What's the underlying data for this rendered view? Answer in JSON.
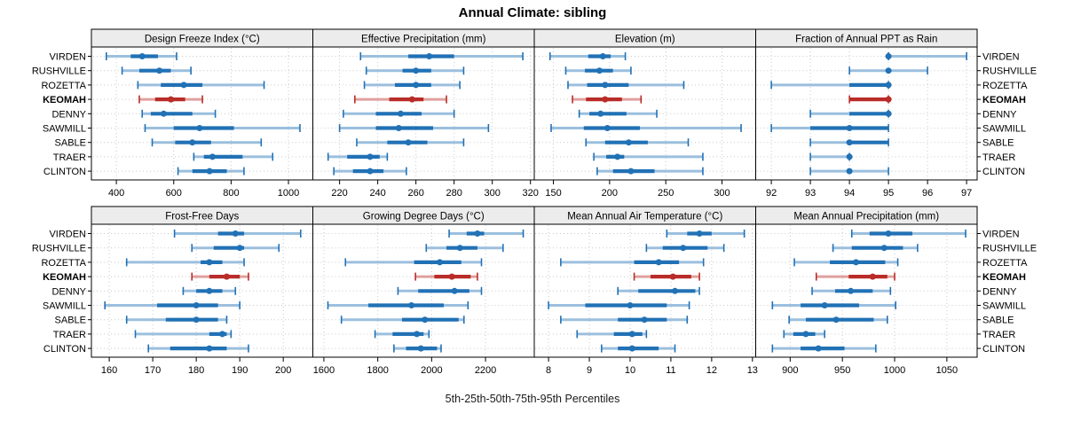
{
  "title": "Annual Climate: sibling",
  "caption": "5th-25th-50th-75th-95th Percentiles",
  "highlight_site": "KEOMAH",
  "colors": {
    "series_blue": "#2171b5",
    "series_blue_light": "#9bbfde",
    "highlight_red": "#b92c28",
    "highlight_red_light": "#e0a09e",
    "strip_bg": "#ececec",
    "panel_border": "#000000",
    "grid": "#c9c9c9",
    "text": "#000000"
  },
  "chart_data": {
    "type": "percentile-dotplot",
    "percentiles": [
      5,
      25,
      50,
      75,
      95
    ],
    "grid": "dotted",
    "legend_position": "none",
    "categories": [
      "VIRDEN",
      "RUSHVILLE",
      "ROZETTA",
      "KEOMAH",
      "DENNY",
      "SAWMILL",
      "SABLE",
      "TRAER",
      "CLINTON"
    ],
    "panels": [
      {
        "label": "Design Freeze Index (°C)",
        "ticks": [
          400,
          600,
          800,
          1000
        ],
        "xlim": [
          313,
          1085
        ],
        "values": {
          "VIRDEN": [
            365,
            450,
            490,
            545,
            610
          ],
          "RUSHVILLE": [
            420,
            480,
            550,
            590,
            660
          ],
          "ROZETTA": [
            475,
            555,
            635,
            700,
            915
          ],
          "KEOMAH": [
            480,
            535,
            590,
            640,
            700
          ],
          "DENNY": [
            490,
            520,
            565,
            665,
            745
          ],
          "SAWMILL": [
            500,
            600,
            690,
            810,
            1040
          ],
          "SABLE": [
            525,
            605,
            665,
            730,
            905
          ],
          "TRAER": [
            670,
            705,
            735,
            840,
            945
          ],
          "CLINTON": [
            615,
            665,
            725,
            785,
            845
          ]
        }
      },
      {
        "label": "Effective Precipitation (mm)",
        "ticks": [
          220,
          240,
          260,
          280,
          300,
          320
        ],
        "xlim": [
          206,
          322
        ],
        "values": {
          "VIRDEN": [
            231,
            256,
            267,
            280,
            316
          ],
          "RUSHVILLE": [
            234,
            253,
            260,
            268,
            285
          ],
          "ROZETTA": [
            233,
            249,
            260,
            268,
            283
          ],
          "KEOMAH": [
            228,
            246,
            258,
            264,
            276
          ],
          "DENNY": [
            222,
            239,
            252,
            263,
            280
          ],
          "SAWMILL": [
            220,
            239,
            251,
            269,
            298
          ],
          "SABLE": [
            229,
            245,
            256,
            266,
            285
          ],
          "TRAER": [
            214,
            224,
            236,
            241,
            245
          ],
          "CLINTON": [
            217,
            227,
            236,
            243,
            255
          ]
        }
      },
      {
        "label": "Elevation (m)",
        "ticks": [
          150,
          200,
          250,
          300
        ],
        "xlim": [
          133,
          330
        ],
        "values": {
          "VIRDEN": [
            147,
            181,
            194,
            201,
            214
          ],
          "RUSHVILLE": [
            161,
            178,
            191,
            203,
            219
          ],
          "ROZETTA": [
            163,
            180,
            196,
            217,
            266
          ],
          "KEOMAH": [
            167,
            179,
            196,
            211,
            228
          ],
          "DENNY": [
            173,
            182,
            192,
            215,
            242
          ],
          "SAWMILL": [
            148,
            177,
            198,
            227,
            317
          ],
          "SABLE": [
            179,
            196,
            217,
            234,
            270
          ],
          "TRAER": [
            186,
            197,
            207,
            213,
            283
          ],
          "CLINTON": [
            189,
            203,
            219,
            240,
            283
          ]
        }
      },
      {
        "label": "Fraction of Annual PPT as Rain",
        "ticks": [
          92,
          93,
          94,
          95,
          96,
          97
        ],
        "xlim": [
          91.6,
          97.27
        ],
        "values": {
          "VIRDEN": [
            95,
            95,
            95,
            95,
            97
          ],
          "RUSHVILLE": [
            94,
            95,
            95,
            95,
            96
          ],
          "ROZETTA": [
            92,
            94,
            95,
            95,
            95
          ],
          "KEOMAH": [
            94,
            94,
            95,
            95,
            95
          ],
          "DENNY": [
            93,
            94,
            95,
            95,
            95
          ],
          "SAWMILL": [
            92,
            93,
            94,
            95,
            95
          ],
          "SABLE": [
            93,
            94,
            94,
            95,
            95
          ],
          "TRAER": [
            93,
            94,
            94,
            94,
            94
          ],
          "CLINTON": [
            93,
            94,
            94,
            94,
            95
          ]
        }
      },
      {
        "label": "Frost-Free Days",
        "ticks": [
          160,
          170,
          180,
          190,
          200
        ],
        "xlim": [
          155.9,
          206.8
        ],
        "values": {
          "VIRDEN": [
            175,
            185,
            189,
            191,
            204
          ],
          "RUSHVILLE": [
            179,
            184,
            190,
            191,
            199
          ],
          "ROZETTA": [
            164,
            181,
            183,
            186,
            191
          ],
          "KEOMAH": [
            179,
            183,
            187,
            190,
            192
          ],
          "DENNY": [
            177,
            180,
            183,
            186,
            189
          ],
          "SAWMILL": [
            159,
            171,
            180,
            185,
            190
          ],
          "SABLE": [
            164,
            173,
            180,
            185,
            187
          ],
          "TRAER": [
            166,
            183,
            186,
            187,
            188
          ],
          "CLINTON": [
            169,
            174,
            183,
            187,
            192
          ]
        }
      },
      {
        "label": "Growing Degree Days (°C)",
        "ticks": [
          1600,
          1800,
          2000,
          2200
        ],
        "xlim": [
          1559,
          2381
        ],
        "values": {
          "VIRDEN": [
            2065,
            2130,
            2170,
            2195,
            2340
          ],
          "RUSHVILLE": [
            1980,
            2055,
            2105,
            2170,
            2265
          ],
          "ROZETTA": [
            1680,
            1935,
            2030,
            2110,
            2185
          ],
          "KEOMAH": [
            1940,
            2010,
            2075,
            2145,
            2170
          ],
          "DENNY": [
            1875,
            1950,
            2085,
            2140,
            2185
          ],
          "SAWMILL": [
            1615,
            1765,
            1925,
            2045,
            2135
          ],
          "SABLE": [
            1665,
            1890,
            1975,
            2100,
            2120
          ],
          "TRAER": [
            1790,
            1855,
            1945,
            1970,
            1990
          ],
          "CLINTON": [
            1860,
            1905,
            1960,
            2020,
            2035
          ]
        }
      },
      {
        "label": "Mean Annual Air Temperature (°C)",
        "ticks": [
          8,
          9,
          10,
          11,
          12,
          13
        ],
        "xlim": [
          7.65,
          13.08
        ],
        "values": {
          "VIRDEN": [
            10.9,
            11.4,
            11.7,
            12.0,
            12.8
          ],
          "RUSHVILLE": [
            10.4,
            10.8,
            11.3,
            11.9,
            12.3
          ],
          "ROZETTA": [
            8.3,
            10.1,
            10.7,
            11.2,
            11.8
          ],
          "KEOMAH": [
            10.1,
            10.5,
            11.05,
            11.5,
            11.7
          ],
          "DENNY": [
            9.7,
            10.2,
            11.1,
            11.6,
            11.7
          ],
          "SAWMILL": [
            8.0,
            8.9,
            10.0,
            10.9,
            11.45
          ],
          "SABLE": [
            8.3,
            9.7,
            10.35,
            10.9,
            11.4
          ],
          "TRAER": [
            8.7,
            9.6,
            10.05,
            10.3,
            10.4
          ],
          "CLINTON": [
            9.3,
            9.7,
            10.05,
            10.7,
            11.1
          ]
        }
      },
      {
        "label": "Mean Annual Precipitation (mm)",
        "ticks": [
          900,
          950,
          1000,
          1050
        ],
        "xlim": [
          867,
          1079
        ],
        "values": {
          "VIRDEN": [
            959,
            976,
            994,
            1017,
            1068
          ],
          "RUSHVILLE": [
            941,
            959,
            990,
            1008,
            1022
          ],
          "ROZETTA": [
            904,
            938,
            963,
            991,
            1003
          ],
          "KEOMAH": [
            925,
            956,
            979,
            993,
            1000
          ],
          "DENNY": [
            921,
            943,
            958,
            979,
            996
          ],
          "SAWMILL": [
            883,
            910,
            933,
            966,
            1001
          ],
          "SABLE": [
            899,
            915,
            944,
            980,
            993
          ],
          "TRAER": [
            894,
            903,
            915,
            924,
            933
          ],
          "CLINTON": [
            883,
            910,
            927,
            952,
            982
          ]
        }
      }
    ]
  }
}
